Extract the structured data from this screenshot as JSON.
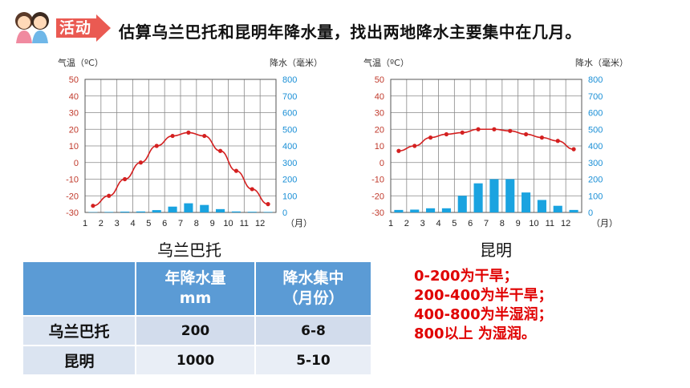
{
  "header": {
    "badge": "活动",
    "task": "估算乌兰巴托和昆明年降水量，找出两地降水主要集中在几月。"
  },
  "chart_data": [
    {
      "type": "bar+line",
      "title": "乌兰巴托",
      "ylabel_left": "气温（ºC）",
      "ylabel_right": "降水（毫米）",
      "xunit": "（月）",
      "categories": [
        "1",
        "2",
        "3",
        "4",
        "5",
        "6",
        "7",
        "8",
        "9",
        "10",
        "11",
        "12"
      ],
      "temp_ylim": [
        -30,
        50
      ],
      "temp_ticks": [
        "50",
        "40",
        "30",
        "20",
        "10",
        "0",
        "-10",
        "-20",
        "-30"
      ],
      "precip_ylim": [
        0,
        800
      ],
      "precip_ticks": [
        "800",
        "700",
        "600",
        "500",
        "400",
        "300",
        "200",
        "100",
        "0"
      ],
      "grid": true,
      "series": [
        {
          "kind": "line",
          "values": [
            -26,
            -20,
            -10,
            0,
            10,
            16,
            18,
            16,
            7,
            -5,
            -16,
            -25
          ]
        },
        {
          "kind": "bar",
          "values": [
            2,
            3,
            5,
            6,
            14,
            35,
            55,
            45,
            20,
            6,
            4,
            3
          ]
        }
      ]
    },
    {
      "type": "bar+line",
      "title": "昆明",
      "ylabel_left": "气温（ºC）",
      "ylabel_right": "降水（毫米）",
      "xunit": "（月）",
      "categories": [
        "1",
        "2",
        "3",
        "4",
        "5",
        "6",
        "7",
        "8",
        "9",
        "10",
        "11",
        "12"
      ],
      "temp_ylim": [
        -30,
        50
      ],
      "temp_ticks": [
        "50",
        "40",
        "30",
        "20",
        "10",
        "0",
        "-10",
        "-20",
        "-30"
      ],
      "precip_ylim": [
        0,
        800
      ],
      "precip_ticks": [
        "800",
        "700",
        "600",
        "500",
        "400",
        "300",
        "200",
        "100",
        "0"
      ],
      "grid": true,
      "series": [
        {
          "kind": "line",
          "values": [
            7,
            10,
            15,
            17,
            18,
            20,
            20,
            19,
            17,
            15,
            13,
            8
          ]
        },
        {
          "kind": "bar",
          "values": [
            15,
            17,
            25,
            25,
            100,
            175,
            200,
            200,
            120,
            75,
            40,
            15
          ]
        }
      ]
    }
  ],
  "table": {
    "headers": [
      "年降水量\nmm",
      "降水集中\n（月份）"
    ],
    "rows": [
      {
        "name": "乌兰巴托",
        "annual": "200",
        "months": "6-8"
      },
      {
        "name": "昆明",
        "annual": "1000",
        "months": "5-10"
      }
    ]
  },
  "legend": [
    "0-200为干旱；",
    "200-400为半干旱；",
    "400-800为半湿润；",
    "800以上 为湿润。"
  ],
  "colors": {
    "line": "#d42020",
    "bar": "#1aa3e0",
    "temp_axis": "#c0392b",
    "precip_axis": "#1a8fd6",
    "badge": "#ea5a52",
    "th": "#5b9bd5"
  }
}
